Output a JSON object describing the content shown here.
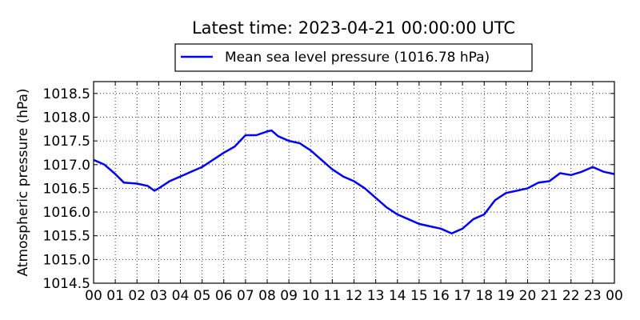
{
  "chart_data": {
    "type": "line",
    "title": "Latest time: 2023-04-21 00:00:00 UTC",
    "xlabel": "",
    "ylabel": "Atmospheric pressure (hPa)",
    "xlim": [
      0,
      24
    ],
    "ylim": [
      1014.5,
      1018.75
    ],
    "grid": true,
    "legend_position": "top-center",
    "x_ticks": [
      "00",
      "01",
      "02",
      "03",
      "04",
      "05",
      "06",
      "07",
      "08",
      "09",
      "10",
      "11",
      "12",
      "13",
      "14",
      "15",
      "16",
      "17",
      "18",
      "19",
      "20",
      "21",
      "22",
      "23",
      "00"
    ],
    "y_ticks": [
      "1014.5",
      "1015.0",
      "1015.5",
      "1016.0",
      "1016.5",
      "1017.0",
      "1017.5",
      "1018.0",
      "1018.5"
    ],
    "series": [
      {
        "name": "Mean sea level pressure (1016.78 hPa)",
        "color": "#0000ff",
        "x": [
          0,
          0.5,
          1.0,
          1.4,
          2.0,
          2.5,
          2.8,
          3.0,
          3.5,
          4.0,
          4.5,
          5.0,
          5.5,
          6.0,
          6.5,
          7.0,
          7.5,
          8.0,
          8.2,
          8.5,
          9.0,
          9.5,
          10.0,
          10.5,
          11.0,
          11.5,
          12.0,
          12.5,
          13.0,
          13.5,
          14.0,
          14.5,
          15.0,
          15.5,
          16.0,
          16.5,
          17.0,
          17.5,
          18.0,
          18.5,
          19.0,
          19.5,
          20.0,
          20.5,
          21.0,
          21.5,
          22.0,
          22.5,
          23.0,
          23.5,
          24.0
        ],
        "y": [
          1017.1,
          1017.0,
          1016.8,
          1016.62,
          1016.6,
          1016.55,
          1016.45,
          1016.5,
          1016.65,
          1016.75,
          1016.85,
          1016.95,
          1017.1,
          1017.25,
          1017.38,
          1017.62,
          1017.62,
          1017.7,
          1017.72,
          1017.6,
          1017.5,
          1017.45,
          1017.3,
          1017.1,
          1016.9,
          1016.75,
          1016.65,
          1016.5,
          1016.3,
          1016.1,
          1015.95,
          1015.85,
          1015.75,
          1015.7,
          1015.65,
          1015.55,
          1015.65,
          1015.85,
          1015.95,
          1016.25,
          1016.4,
          1016.45,
          1016.5,
          1016.62,
          1016.65,
          1016.82,
          1016.78,
          1016.85,
          1016.95,
          1016.85,
          1016.8
        ]
      }
    ]
  }
}
